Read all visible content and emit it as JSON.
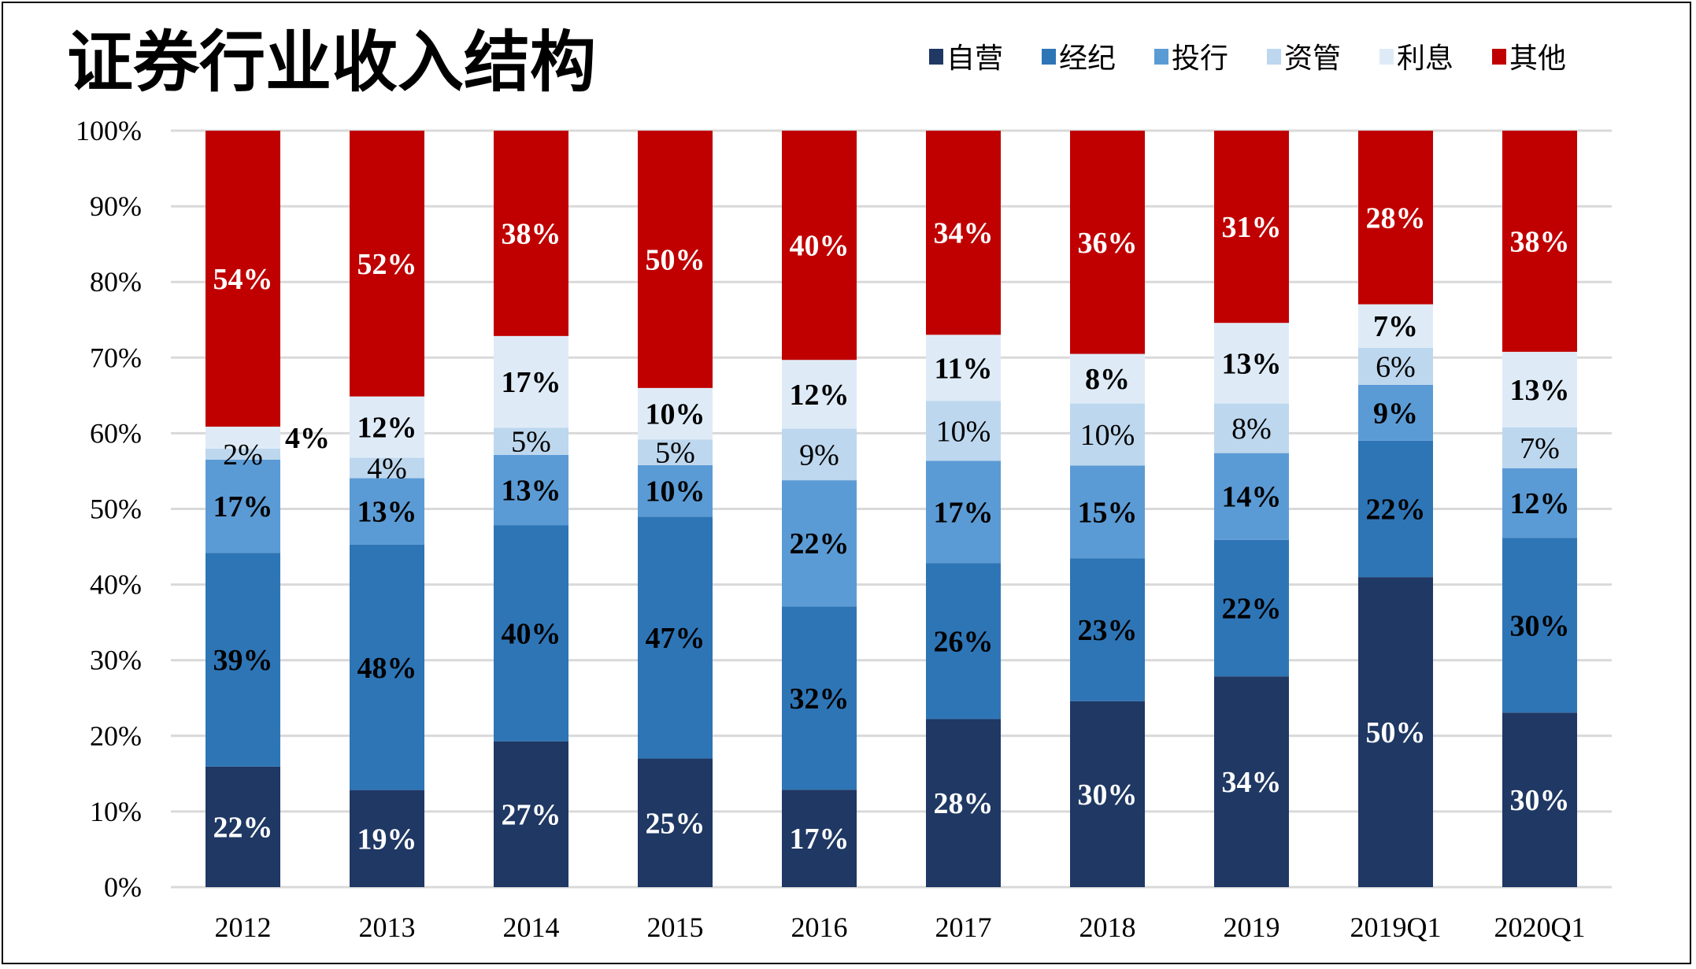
{
  "chart_data": {
    "type": "bar",
    "stacked": true,
    "normalized": true,
    "title": "证券行业收入结构",
    "xlabel": "",
    "ylabel": "",
    "ylim": [
      0,
      100
    ],
    "yticks": [
      "0%",
      "10%",
      "20%",
      "30%",
      "40%",
      "50%",
      "60%",
      "70%",
      "80%",
      "90%",
      "100%"
    ],
    "grid": true,
    "legend_placement": "top-right",
    "categories": [
      "2012",
      "2013",
      "2014",
      "2015",
      "2016",
      "2017",
      "2018",
      "2019",
      "2019Q1",
      "2020Q1"
    ],
    "series": [
      {
        "name": "自营",
        "color": "#1f3864",
        "label_color": "#ffffff",
        "label_bold": true,
        "values": [
          22,
          19,
          27,
          25,
          17,
          28,
          30,
          34,
          50,
          30
        ]
      },
      {
        "name": "经纪",
        "color": "#2e75b6",
        "label_color": "#000000",
        "label_bold": true,
        "values": [
          39,
          48,
          40,
          47,
          32,
          26,
          23,
          22,
          22,
          30
        ]
      },
      {
        "name": "投行",
        "color": "#5b9bd5",
        "label_color": "#000000",
        "label_bold": true,
        "values": [
          17,
          13,
          13,
          10,
          22,
          17,
          15,
          14,
          9,
          12
        ]
      },
      {
        "name": "资管",
        "color": "#bdd7ee",
        "label_color": "#000000",
        "label_bold": false,
        "values": [
          2,
          4,
          5,
          5,
          9,
          10,
          10,
          8,
          6,
          7
        ]
      },
      {
        "name": "利息",
        "color": "#deebf7",
        "label_color": "#000000",
        "label_bold": true,
        "values": [
          4,
          12,
          17,
          10,
          12,
          11,
          8,
          13,
          7,
          13
        ]
      },
      {
        "name": "其他",
        "color": "#c00000",
        "label_color": "#ffffff",
        "label_bold": true,
        "values": [
          54,
          52,
          38,
          50,
          40,
          34,
          36,
          31,
          28,
          38
        ]
      }
    ]
  }
}
